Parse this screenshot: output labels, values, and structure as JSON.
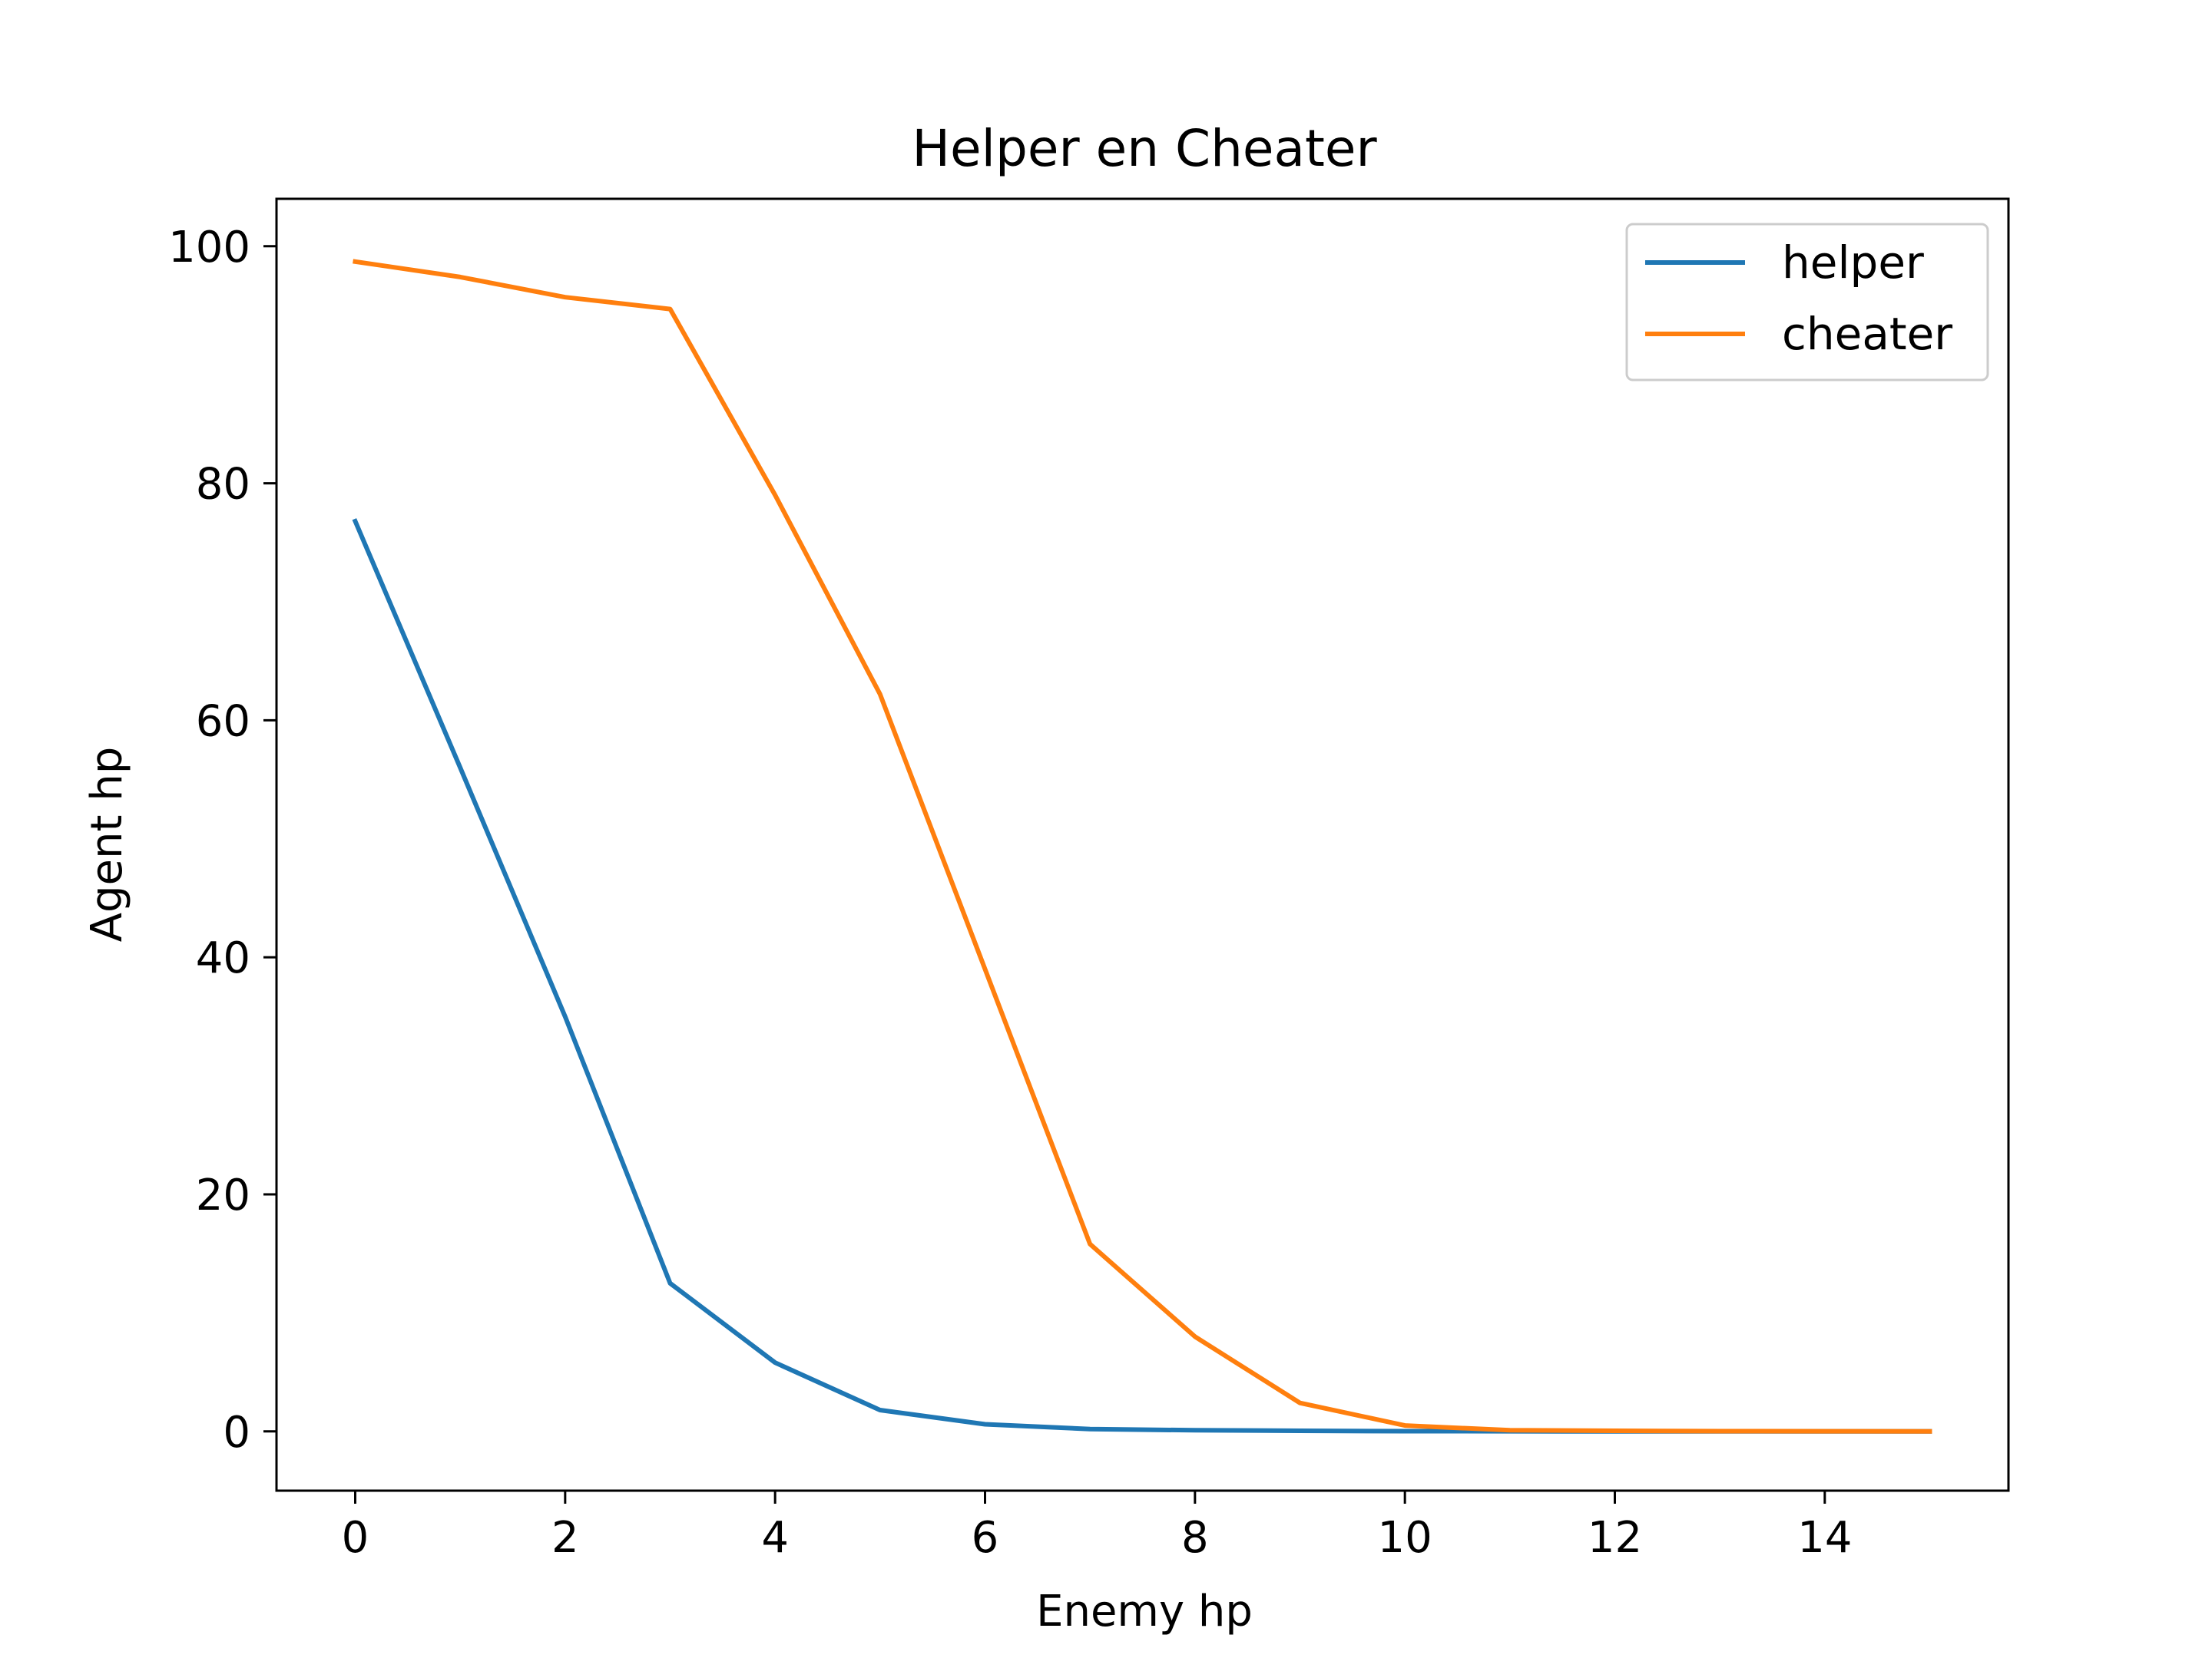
{
  "chart_data": {
    "type": "line",
    "title": "Helper en Cheater",
    "xlabel": "Enemy hp",
    "ylabel": "Agent hp",
    "xlim": [
      -0.75,
      15.75
    ],
    "ylim": [
      -5,
      104
    ],
    "xticks": [
      0,
      2,
      4,
      6,
      8,
      10,
      12,
      14
    ],
    "yticks": [
      0,
      20,
      40,
      60,
      80,
      100
    ],
    "grid": false,
    "legend_position": "top-right",
    "x": [
      0,
      1,
      2,
      3,
      4,
      5,
      6,
      7,
      8,
      9,
      10,
      11,
      12,
      13,
      14,
      15
    ],
    "series": [
      {
        "name": "helper",
        "color": "#1f77b4",
        "values": [
          76.8,
          56.0,
          35.0,
          12.5,
          5.8,
          1.8,
          0.6,
          0.2,
          0.1,
          0.05,
          0.02,
          0.01,
          0,
          0,
          0,
          0
        ]
      },
      {
        "name": "cheater",
        "color": "#ff7f0e",
        "values": [
          98.7,
          97.4,
          95.7,
          94.7,
          79.0,
          62.2,
          39.0,
          15.8,
          8.0,
          2.4,
          0.5,
          0.1,
          0.05,
          0.02,
          0.01,
          0
        ]
      }
    ]
  }
}
